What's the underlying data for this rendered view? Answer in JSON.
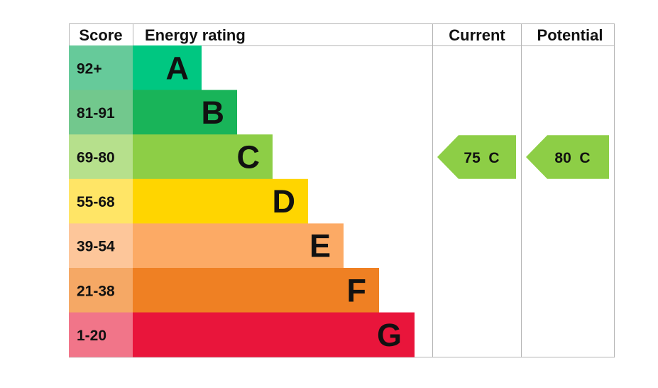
{
  "chart_data": {
    "type": "table",
    "headers": {
      "score": "Score",
      "rating": "Energy rating",
      "current": "Current",
      "potential": "Potential"
    },
    "bands": [
      {
        "score": "92+",
        "letter": "A",
        "color": "#00c781",
        "score_bg": "#66ca9a"
      },
      {
        "score": "81-91",
        "letter": "B",
        "color": "#19b459",
        "score_bg": "#72c88d"
      },
      {
        "score": "69-80",
        "letter": "C",
        "color": "#8dce46",
        "score_bg": "#b6e08c"
      },
      {
        "score": "55-68",
        "letter": "D",
        "color": "#ffd500",
        "score_bg": "#ffe566"
      },
      {
        "score": "39-54",
        "letter": "E",
        "color": "#fcaa65",
        "score_bg": "#fdc69a"
      },
      {
        "score": "21-38",
        "letter": "F",
        "color": "#ef8023",
        "score_bg": "#f5a865"
      },
      {
        "score": "1-20",
        "letter": "G",
        "color": "#e9153b",
        "score_bg": "#f17589"
      }
    ],
    "current": {
      "value": 75,
      "letter": "C",
      "label": "75  C",
      "color": "#8dce46"
    },
    "potential": {
      "value": 80,
      "letter": "C",
      "label": "80  C",
      "color": "#8dce46"
    }
  }
}
